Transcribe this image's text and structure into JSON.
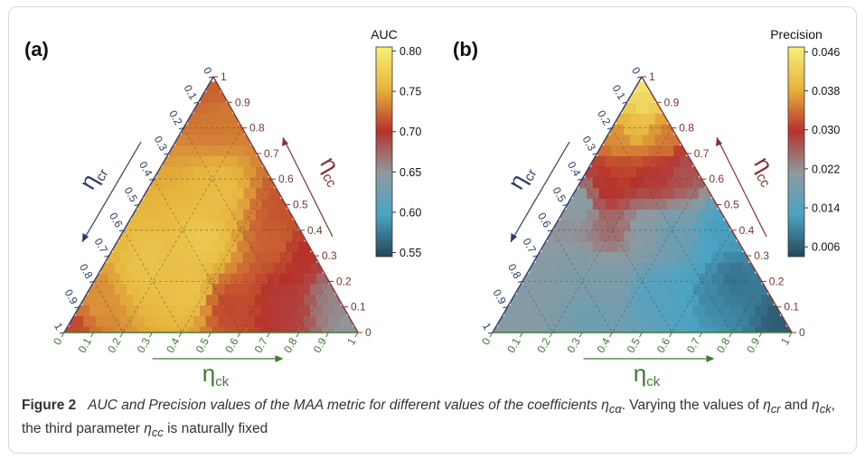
{
  "figure": {
    "caption_label": "Figure 2",
    "caption_title": "AUC and Precision values of the MAA metric for different values of the coefficients η",
    "caption_title_sub": "cα",
    "caption_text_1": ". Varying the values of ",
    "caption_eta1": "η",
    "caption_eta1_sub": "cr",
    "caption_text_2": " and ",
    "caption_eta2": "η",
    "caption_eta2_sub": "ck",
    "caption_text_3": ", the third parameter ",
    "caption_eta3": "η",
    "caption_eta3_sub": "cc",
    "caption_text_4": " is naturally fixed"
  },
  "colors": {
    "low": "#25475a",
    "mid_low": "#4ba3c4",
    "mid": "#8e9aa0",
    "mid_high": "#b8312b",
    "high_mid": "#e6b43c",
    "high": "#f7f07a",
    "cr_axis": "#2d3c6b",
    "cc_axis": "#8b2f2f",
    "ck_axis": "#3f7a34"
  },
  "chart_data": [
    {
      "type": "heatmap",
      "panel_label": "(a)",
      "metric": "AUC",
      "colorbar": {
        "title": "AUC",
        "ticks": [
          "0.80",
          "0.75",
          "0.70",
          "0.65",
          "0.60",
          "0.55"
        ],
        "range": [
          0.545,
          0.805
        ]
      },
      "axes": {
        "cr": {
          "label": "η",
          "sub": "cr",
          "ticks": [
            "0",
            "0.1",
            "0.2",
            "0.3",
            "0.4",
            "0.5",
            "0.6",
            "0.7",
            "0.8",
            "0.9",
            "1"
          ]
        },
        "cc": {
          "label": "η",
          "sub": "cc",
          "ticks": [
            "0",
            "0.1",
            "0.2",
            "0.3",
            "0.4",
            "0.5",
            "0.6",
            "0.7",
            "0.8",
            "0.9",
            "1"
          ]
        },
        "ck": {
          "label": "η",
          "sub": "ck",
          "ticks": [
            "0",
            "0.1",
            "0.2",
            "0.3",
            "0.4",
            "0.5",
            "0.6",
            "0.7",
            "0.8",
            "0.9",
            "1"
          ]
        }
      },
      "grid": true,
      "anchors": [
        {
          "cr": 0.35,
          "ck": 0.3,
          "value": 0.77
        },
        {
          "cr": 0.6,
          "ck": 0.15,
          "value": 0.765
        },
        {
          "cr": 0.2,
          "ck": 0.25,
          "value": 0.76
        },
        {
          "cr": 0.85,
          "ck": 0.05,
          "value": 0.74
        },
        {
          "cr": 0.95,
          "ck": 0.02,
          "value": 0.71
        },
        {
          "cr": 0.1,
          "ck": 0.55,
          "value": 0.72
        },
        {
          "cr": 0.05,
          "ck": 0.65,
          "value": 0.7
        },
        {
          "cr": 0.02,
          "ck": 0.5,
          "value": 0.715
        },
        {
          "cr": 0.02,
          "ck": 0.85,
          "value": 0.66
        },
        {
          "cr": 0.02,
          "ck": 0.95,
          "value": 0.65
        },
        {
          "cr": 0.05,
          "ck": 0.1,
          "value": 0.73
        },
        {
          "cr": 0.03,
          "ck": 0.03,
          "value": 0.72
        },
        {
          "cr": 0.4,
          "ck": 0.5,
          "value": 0.71
        },
        {
          "cr": 0.2,
          "ck": 0.7,
          "value": 0.695
        },
        {
          "cr": 0.5,
          "ck": 0.35,
          "value": 0.765
        }
      ]
    },
    {
      "type": "heatmap",
      "panel_label": "(b)",
      "metric": "Precision",
      "colorbar": {
        "title": "Precision",
        "ticks": [
          "0.046",
          "0.038",
          "0.030",
          "0.022",
          "0.014",
          "0.006"
        ],
        "range": [
          0.004,
          0.047
        ]
      },
      "axes": {
        "cr": {
          "label": "η",
          "sub": "cr",
          "ticks": [
            "0",
            "0.1",
            "0.2",
            "0.3",
            "0.4",
            "0.5",
            "0.6",
            "0.7",
            "0.8",
            "0.9",
            "1"
          ]
        },
        "cc": {
          "label": "η",
          "sub": "cc",
          "ticks": [
            "0",
            "0.1",
            "0.2",
            "0.3",
            "0.4",
            "0.5",
            "0.6",
            "0.7",
            "0.8",
            "0.9",
            "1"
          ]
        },
        "ck": {
          "label": "η",
          "sub": "ck",
          "ticks": [
            "0",
            "0.1",
            "0.2",
            "0.3",
            "0.4",
            "0.5",
            "0.6",
            "0.7",
            "0.8",
            "0.9",
            "1"
          ]
        }
      },
      "grid": true,
      "anchors": [
        {
          "cr": 0.0,
          "ck": 0.0,
          "value": 0.046
        },
        {
          "cr": 0.05,
          "ck": 0.05,
          "value": 0.044
        },
        {
          "cr": 0.12,
          "ck": 0.08,
          "value": 0.04
        },
        {
          "cr": 0.2,
          "ck": 0.05,
          "value": 0.036
        },
        {
          "cr": 0.05,
          "ck": 0.2,
          "value": 0.035
        },
        {
          "cr": 0.25,
          "ck": 0.12,
          "value": 0.031
        },
        {
          "cr": 0.15,
          "ck": 0.25,
          "value": 0.029
        },
        {
          "cr": 0.35,
          "ck": 0.1,
          "value": 0.03
        },
        {
          "cr": 0.05,
          "ck": 0.32,
          "value": 0.027
        },
        {
          "cr": 0.4,
          "ck": 0.2,
          "value": 0.025
        },
        {
          "cr": 0.3,
          "ck": 0.3,
          "value": 0.02
        },
        {
          "cr": 0.2,
          "ck": 0.4,
          "value": 0.017
        },
        {
          "cr": 0.45,
          "ck": 0.05,
          "value": 0.02
        },
        {
          "cr": 0.5,
          "ck": 0.3,
          "value": 0.019
        },
        {
          "cr": 0.6,
          "ck": 0.2,
          "value": 0.019
        },
        {
          "cr": 0.8,
          "ck": 0.05,
          "value": 0.02
        },
        {
          "cr": 0.95,
          "ck": 0.02,
          "value": 0.02
        },
        {
          "cr": 0.3,
          "ck": 0.55,
          "value": 0.013
        },
        {
          "cr": 0.1,
          "ck": 0.7,
          "value": 0.008
        },
        {
          "cr": 0.02,
          "ck": 0.95,
          "value": 0.006
        },
        {
          "cr": 0.4,
          "ck": 0.45,
          "value": 0.014
        },
        {
          "cr": 0.2,
          "ck": 0.65,
          "value": 0.01
        },
        {
          "cr": 0.05,
          "ck": 0.55,
          "value": 0.012
        },
        {
          "cr": 0.65,
          "ck": 0.3,
          "value": 0.017
        }
      ]
    }
  ]
}
